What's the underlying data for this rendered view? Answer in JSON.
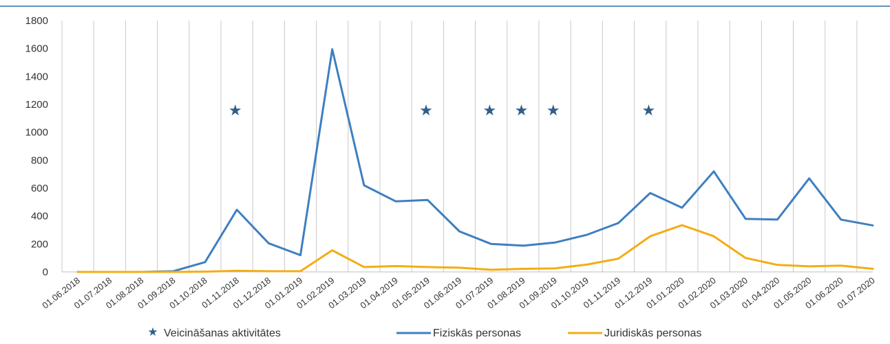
{
  "chart_data": {
    "type": "line",
    "title": "",
    "xlabel": "",
    "ylabel": "",
    "ylim": [
      0,
      1800
    ],
    "yticks": [
      0,
      200,
      400,
      600,
      800,
      1000,
      1200,
      1400,
      1600,
      1800
    ],
    "grid": "vertical",
    "legend_position": "bottom",
    "categories": [
      "01.06.2018",
      "01.07.2018",
      "01.08.2018",
      "01.09.2018",
      "01.10.2018",
      "01.11.2018",
      "01.12.2018",
      "01.01.2019",
      "01.02.2019",
      "01.03.2019",
      "01.04.2019",
      "01.05.2019",
      "01.06.2019",
      "01.07.2019",
      "01.08.2019",
      "01.09.2019",
      "01.10.2019",
      "01.11.2019",
      "01.12.2019",
      "01.01.2020",
      "01.02.2020",
      "01.03.2020",
      "01.04.2020",
      "01.05.2020",
      "01.06.2020",
      "01.07.2020"
    ],
    "series": [
      {
        "name": "Fiziskās personas",
        "color": "#3d7fc1",
        "points": [
          [
            "01.06.2018",
            0
          ],
          [
            "01.07.2018",
            0
          ],
          [
            "01.08.2018",
            0
          ],
          [
            "01.09.2018",
            5
          ],
          [
            "01.10.2018",
            70
          ],
          [
            "01.11.2018",
            445
          ],
          [
            "01.12.2018",
            205
          ],
          [
            "01.01.2019",
            120
          ],
          [
            "01.02.2019",
            1595
          ],
          [
            "01.03.2019",
            620
          ],
          [
            "01.04.2019",
            505
          ],
          [
            "01.05.2019",
            515
          ],
          [
            "01.06.2019",
            290
          ],
          [
            "01.07.2019",
            200
          ],
          [
            "01.08.2019",
            188
          ],
          [
            "01.09.2019",
            210
          ],
          [
            "01.10.2019",
            265
          ],
          [
            "01.11.2019",
            350
          ],
          [
            "01.12.2019",
            565
          ],
          [
            "01.01.2020",
            460
          ],
          [
            "01.02.2020",
            720
          ],
          [
            "01.03.2020",
            380
          ],
          [
            "01.04.2020",
            375
          ],
          [
            "01.05.2020",
            670
          ],
          [
            "01.06.2020",
            375
          ],
          [
            "01.07.2020",
            333
          ]
        ]
      },
      {
        "name": "Juridiskās personas",
        "color": "#f4ac14",
        "points": [
          [
            "01.06.2018",
            0
          ],
          [
            "01.07.2018",
            0
          ],
          [
            "01.08.2018",
            0
          ],
          [
            "01.09.2018",
            0
          ],
          [
            "01.10.2018",
            2
          ],
          [
            "01.11.2018",
            8
          ],
          [
            "01.12.2018",
            5
          ],
          [
            "01.01.2019",
            5
          ],
          [
            "01.02.2019",
            155
          ],
          [
            "01.03.2019",
            35
          ],
          [
            "01.04.2019",
            42
          ],
          [
            "01.05.2019",
            35
          ],
          [
            "01.06.2019",
            30
          ],
          [
            "01.07.2019",
            15
          ],
          [
            "01.08.2019",
            22
          ],
          [
            "01.09.2019",
            25
          ],
          [
            "01.10.2019",
            52
          ],
          [
            "01.11.2019",
            95
          ],
          [
            "01.12.2019",
            255
          ],
          [
            "01.01.2020",
            335
          ],
          [
            "01.02.2020",
            255
          ],
          [
            "01.03.2020",
            100
          ],
          [
            "01.04.2020",
            50
          ],
          [
            "01.05.2020",
            40
          ],
          [
            "01.06.2020",
            45
          ],
          [
            "01.07.2020",
            22
          ]
        ]
      }
    ],
    "markers": {
      "name": "Veicināšanas aktivitātes",
      "color": "#2f5f8a",
      "symbol": "★",
      "y": 1160,
      "x_positions": [
        "01.11.2018",
        "01.05.2019",
        "01.07.2019",
        "01.08.2019",
        "01.09.2019",
        "01.12.2019"
      ],
      "x_offset_months": [
        -0.05,
        -0.05,
        -0.05,
        -0.05,
        -0.05,
        -0.05
      ]
    },
    "legend": [
      {
        "label": "Veicināšanas aktivitātes",
        "kind": "marker"
      },
      {
        "label": "Fiziskās personas",
        "kind": "line"
      },
      {
        "label": "Juridiskās personas",
        "kind": "line"
      }
    ],
    "colors": {
      "top_rule": "#2e6da4",
      "grid": "#c8c8c8",
      "axis": "#bfbfbf"
    }
  }
}
